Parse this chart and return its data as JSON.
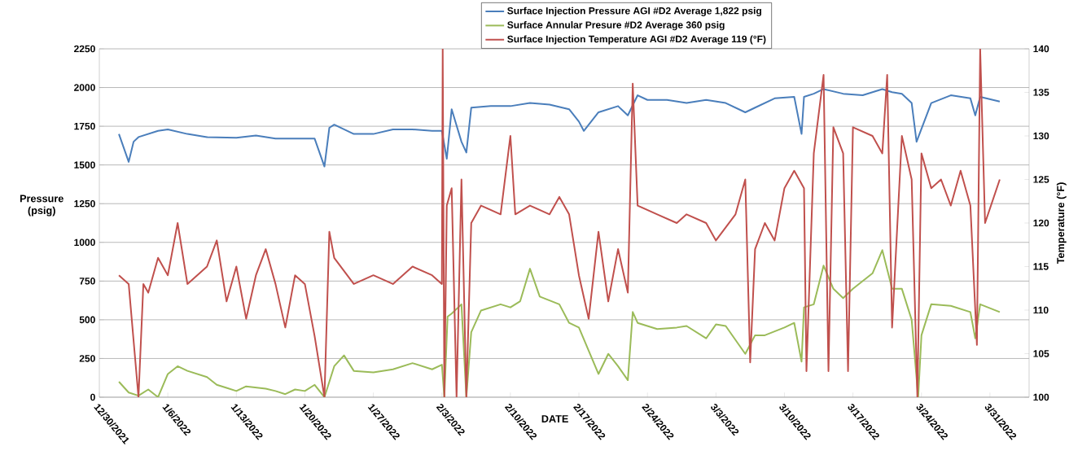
{
  "chart_data": {
    "type": "line",
    "xlabel": "DATE",
    "ylabel": "Pressure (psig)",
    "y2label": "Temperature (°F)",
    "xlim": [
      "2021-12-30",
      "2022-04-04"
    ],
    "ylim": [
      0,
      2250
    ],
    "y2lim": [
      100,
      140
    ],
    "xticks": [
      {
        "value": "2021-12-30",
        "label": "12/30/2021"
      },
      {
        "value": "2022-01-06",
        "label": "1/6/2022"
      },
      {
        "value": "2022-01-13",
        "label": "1/13/2022"
      },
      {
        "value": "2022-01-20",
        "label": "1/20/2022"
      },
      {
        "value": "2022-01-27",
        "label": "1/27/2022"
      },
      {
        "value": "2022-02-03",
        "label": "2/3/2022"
      },
      {
        "value": "2022-02-10",
        "label": "2/10/2022"
      },
      {
        "value": "2022-02-17",
        "label": "2/17/2022"
      },
      {
        "value": "2022-02-24",
        "label": "2/24/2022"
      },
      {
        "value": "2022-03-03",
        "label": "3/3/2022"
      },
      {
        "value": "2022-03-10",
        "label": "3/10/2022"
      },
      {
        "value": "2022-03-17",
        "label": "3/17/2022"
      },
      {
        "value": "2022-03-24",
        "label": "3/24/2022"
      },
      {
        "value": "2022-03-31",
        "label": "3/31/2022"
      }
    ],
    "yticks": [
      0,
      250,
      500,
      750,
      1000,
      1250,
      1500,
      1750,
      2000,
      2250
    ],
    "y2ticks": [
      100,
      105,
      110,
      115,
      120,
      125,
      130,
      135,
      140
    ],
    "grid": "y",
    "legend": "top",
    "series": [
      {
        "name": "Surface Injection Pressure AGI #D2 Average 1,822 psig",
        "color": "#4a7ebb",
        "x": [
          "2022-01-01",
          "2022-01-02",
          "2022-01-02T12:00",
          "2022-01-03",
          "2022-01-05",
          "2022-01-06",
          "2022-01-08",
          "2022-01-10",
          "2022-01-13",
          "2022-01-15",
          "2022-01-17",
          "2022-01-19",
          "2022-01-21",
          "2022-01-22",
          "2022-01-22T12:00",
          "2022-01-23",
          "2022-01-25",
          "2022-01-27",
          "2022-01-29",
          "2022-01-31",
          "2022-02-02",
          "2022-02-03",
          "2022-02-03T12:00",
          "2022-02-04",
          "2022-02-05",
          "2022-02-05T12:00",
          "2022-02-06",
          "2022-02-08",
          "2022-02-10",
          "2022-02-12",
          "2022-02-14",
          "2022-02-16",
          "2022-02-17",
          "2022-02-17T12:00",
          "2022-02-19",
          "2022-02-21",
          "2022-02-22",
          "2022-02-23",
          "2022-02-24",
          "2022-02-26",
          "2022-02-28",
          "2022-03-02",
          "2022-03-04",
          "2022-03-06",
          "2022-03-07",
          "2022-03-09",
          "2022-03-11",
          "2022-03-11T18:00",
          "2022-03-12",
          "2022-03-13",
          "2022-03-14",
          "2022-03-16",
          "2022-03-18",
          "2022-03-20",
          "2022-03-21",
          "2022-03-22",
          "2022-03-23",
          "2022-03-23T12:00",
          "2022-03-25",
          "2022-03-27",
          "2022-03-29",
          "2022-03-29T12:00",
          "2022-03-30",
          "2022-04-01"
        ],
        "values": [
          1700,
          1520,
          1650,
          1680,
          1720,
          1730,
          1700,
          1680,
          1675,
          1690,
          1670,
          1670,
          1670,
          1490,
          1740,
          1760,
          1700,
          1700,
          1730,
          1730,
          1720,
          1720,
          1540,
          1860,
          1650,
          1580,
          1870,
          1880,
          1880,
          1900,
          1890,
          1860,
          1780,
          1720,
          1840,
          1880,
          1820,
          1950,
          1920,
          1920,
          1900,
          1920,
          1900,
          1840,
          1870,
          1930,
          1940,
          1700,
          1940,
          1960,
          1990,
          1960,
          1950,
          1990,
          1970,
          1960,
          1900,
          1650,
          1900,
          1950,
          1930,
          1820,
          1940,
          1910
        ]
      },
      {
        "name": "Surface Annular Presure #D2 Average 360 psig",
        "color": "#9bbb59",
        "x": [
          "2022-01-01",
          "2022-01-02",
          "2022-01-03",
          "2022-01-04",
          "2022-01-05",
          "2022-01-06",
          "2022-01-07",
          "2022-01-08",
          "2022-01-10",
          "2022-01-11",
          "2022-01-12",
          "2022-01-13",
          "2022-01-14",
          "2022-01-16",
          "2022-01-17",
          "2022-01-18",
          "2022-01-19",
          "2022-01-20",
          "2022-01-21",
          "2022-01-22",
          "2022-01-23",
          "2022-01-24",
          "2022-01-25",
          "2022-01-27",
          "2022-01-29",
          "2022-01-31",
          "2022-02-02",
          "2022-02-03",
          "2022-02-03T06:00",
          "2022-02-03T14:00",
          "2022-02-04",
          "2022-02-05",
          "2022-02-05T12:00",
          "2022-02-06",
          "2022-02-07",
          "2022-02-09",
          "2022-02-10",
          "2022-02-11",
          "2022-02-12",
          "2022-02-13",
          "2022-02-15",
          "2022-02-16",
          "2022-02-17",
          "2022-02-18",
          "2022-02-19",
          "2022-02-20",
          "2022-02-21",
          "2022-02-22",
          "2022-02-22T12:00",
          "2022-02-23",
          "2022-02-25",
          "2022-02-27",
          "2022-02-28",
          "2022-03-02",
          "2022-03-03",
          "2022-03-04",
          "2022-03-06",
          "2022-03-07",
          "2022-03-08",
          "2022-03-10",
          "2022-03-11",
          "2022-03-11T18:00",
          "2022-03-12",
          "2022-03-13",
          "2022-03-14",
          "2022-03-15",
          "2022-03-16",
          "2022-03-17",
          "2022-03-19",
          "2022-03-20",
          "2022-03-21",
          "2022-03-22",
          "2022-03-23",
          "2022-03-23T16:00",
          "2022-03-24",
          "2022-03-25",
          "2022-03-27",
          "2022-03-29",
          "2022-03-29T12:00",
          "2022-03-30",
          "2022-04-01"
        ],
        "values": [
          100,
          30,
          10,
          50,
          0,
          150,
          200,
          170,
          130,
          80,
          60,
          40,
          70,
          55,
          40,
          20,
          50,
          40,
          80,
          0,
          200,
          270,
          170,
          160,
          180,
          220,
          180,
          210,
          0,
          520,
          540,
          600,
          0,
          420,
          560,
          600,
          580,
          620,
          830,
          650,
          600,
          480,
          450,
          300,
          150,
          280,
          200,
          110,
          550,
          480,
          440,
          450,
          460,
          380,
          470,
          460,
          280,
          400,
          400,
          450,
          480,
          230,
          580,
          600,
          850,
          700,
          640,
          700,
          800,
          950,
          700,
          700,
          500,
          0,
          400,
          600,
          590,
          550,
          380,
          600,
          550
        ]
      },
      {
        "name": "Surface Injection Temperature AGI #D2 Average 119 (°F)",
        "color": "#c0504d",
        "axis": "y2",
        "x": [
          "2022-01-01",
          "2022-01-02",
          "2022-01-03",
          "2022-01-03T12:00",
          "2022-01-04",
          "2022-01-05",
          "2022-01-06",
          "2022-01-07",
          "2022-01-08",
          "2022-01-10",
          "2022-01-11",
          "2022-01-12",
          "2022-01-13",
          "2022-01-14",
          "2022-01-15",
          "2022-01-16",
          "2022-01-17",
          "2022-01-18",
          "2022-01-19",
          "2022-01-20",
          "2022-01-21",
          "2022-01-22",
          "2022-01-22T12:00",
          "2022-01-23",
          "2022-01-25",
          "2022-01-27",
          "2022-01-29",
          "2022-01-31",
          "2022-02-02",
          "2022-02-03",
          "2022-02-03T02:00",
          "2022-02-03T06:00",
          "2022-02-03T12:00",
          "2022-02-04",
          "2022-02-04T12:00",
          "2022-02-05",
          "2022-02-05T12:00",
          "2022-02-06",
          "2022-02-07",
          "2022-02-09",
          "2022-02-10",
          "2022-02-10T12:00",
          "2022-02-12",
          "2022-02-14",
          "2022-02-15",
          "2022-02-16",
          "2022-02-17",
          "2022-02-18",
          "2022-02-19",
          "2022-02-20",
          "2022-02-21",
          "2022-02-22",
          "2022-02-22T12:00",
          "2022-02-23",
          "2022-02-25",
          "2022-02-27",
          "2022-02-28",
          "2022-03-02",
          "2022-03-03",
          "2022-03-05",
          "2022-03-06",
          "2022-03-06T12:00",
          "2022-03-07",
          "2022-03-08",
          "2022-03-09",
          "2022-03-10",
          "2022-03-11",
          "2022-03-12",
          "2022-03-12T06:00",
          "2022-03-13",
          "2022-03-14",
          "2022-03-14T12:00",
          "2022-03-15",
          "2022-03-16",
          "2022-03-16T12:00",
          "2022-03-17",
          "2022-03-19",
          "2022-03-20",
          "2022-03-20T12:00",
          "2022-03-21",
          "2022-03-22",
          "2022-03-23",
          "2022-03-23T14:00",
          "2022-03-24",
          "2022-03-25",
          "2022-03-26",
          "2022-03-27",
          "2022-03-28",
          "2022-03-29",
          "2022-03-29T16:00",
          "2022-03-30",
          "2022-03-30T12:00",
          "2022-04-01"
        ],
        "values": [
          114,
          113,
          100,
          113,
          112,
          116,
          114,
          120,
          113,
          115,
          118,
          111,
          115,
          109,
          114,
          117,
          113,
          108,
          114,
          113,
          107,
          100,
          119,
          116,
          113,
          114,
          113,
          115,
          114,
          113,
          140,
          100,
          122,
          124,
          100,
          125,
          100,
          120,
          122,
          121,
          130,
          121,
          122,
          121,
          123,
          121,
          114,
          109,
          119,
          111,
          117,
          112,
          136,
          122,
          121,
          120,
          121,
          120,
          118,
          121,
          125,
          104,
          117,
          120,
          118,
          124,
          126,
          124,
          103,
          128,
          137,
          103,
          131,
          128,
          103,
          131,
          130,
          128,
          137,
          108,
          130,
          125,
          100,
          128,
          124,
          125,
          122,
          126,
          122,
          106,
          140,
          120,
          125
        ]
      }
    ]
  }
}
